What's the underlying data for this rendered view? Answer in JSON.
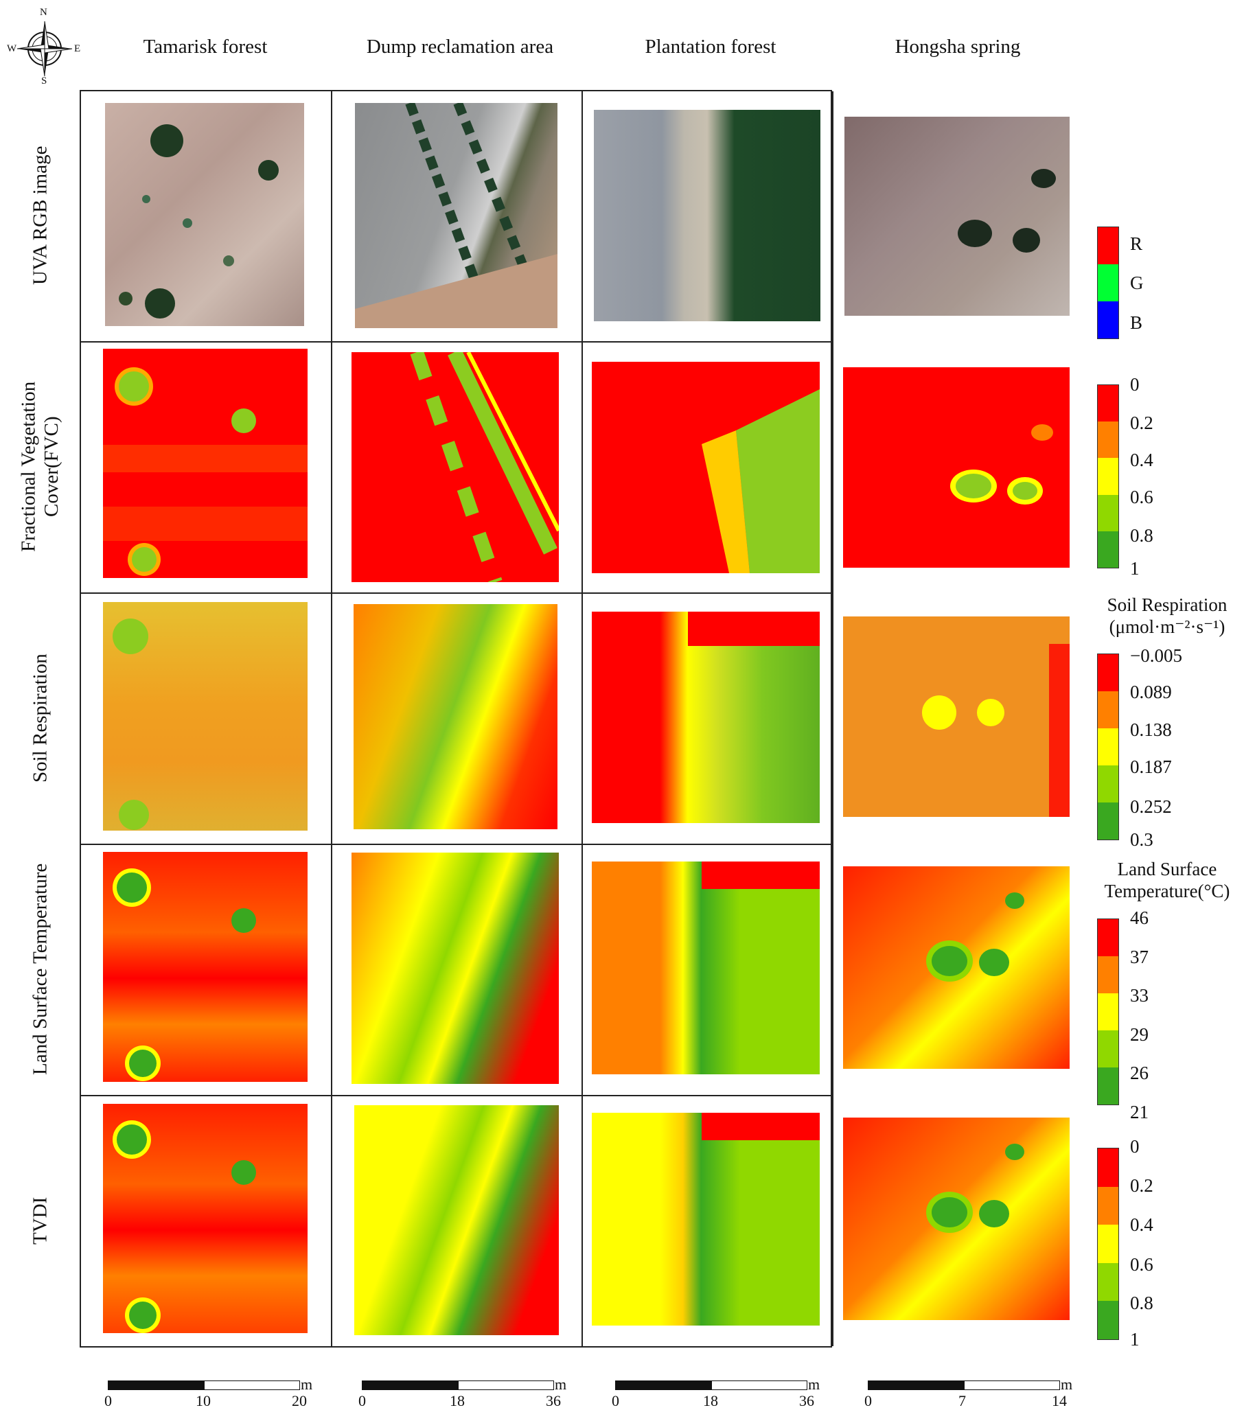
{
  "compass": {
    "n": "N",
    "s": "S",
    "e": "E",
    "w": "W"
  },
  "columns": [
    "Tamarisk forest",
    "Dump reclamation area",
    "Plantation forest",
    "Hongsha spring"
  ],
  "rows": [
    "UVA RGB image",
    "Fractional Vegetation Cover(FVC)",
    "Soil Respiration",
    "Land Surface Temperature",
    "TVDI"
  ],
  "legends": {
    "rgb": {
      "items": [
        "R",
        "G",
        "B"
      ],
      "colors": [
        "#ff0000",
        "#00ff33",
        "#0000ff"
      ]
    },
    "fvc": {
      "ticks": [
        "0",
        "0.2",
        "0.4",
        "0.6",
        "0.8",
        "1"
      ],
      "colors": [
        "#ff0000",
        "#ff8000",
        "#ffff00",
        "#90d800",
        "#3aa820"
      ]
    },
    "sr": {
      "title_line1": "Soil Respiration",
      "title_line2": "(μmol·m⁻²·s⁻¹)",
      "ticks": [
        "−0.005",
        "0.089",
        "0.138",
        "0.187",
        "0.252",
        "0.3"
      ],
      "colors": [
        "#ff0000",
        "#ff8000",
        "#ffff00",
        "#90d800",
        "#3aa820"
      ]
    },
    "lst": {
      "title_line1": "Land Surface",
      "title_line2": "Temperature(°C)",
      "ticks": [
        "46",
        "37",
        "33",
        "29",
        "26",
        "21"
      ],
      "colors": [
        "#ff0000",
        "#ff8000",
        "#ffff00",
        "#90d800",
        "#3aa820"
      ]
    },
    "tvdi": {
      "ticks": [
        "0",
        "0.2",
        "0.4",
        "0.6",
        "0.8",
        "1"
      ],
      "colors": [
        "#ff0000",
        "#ff8000",
        "#ffff00",
        "#90d800",
        "#3aa820"
      ]
    }
  },
  "scalebars": [
    {
      "unit": "m",
      "ticks": [
        "0",
        "10",
        "20"
      ]
    },
    {
      "unit": "m",
      "ticks": [
        "0",
        "18",
        "36"
      ]
    },
    {
      "unit": "m",
      "ticks": [
        "0",
        "18",
        "36"
      ]
    },
    {
      "unit": "m",
      "ticks": [
        "0",
        "7",
        "14"
      ]
    }
  ]
}
